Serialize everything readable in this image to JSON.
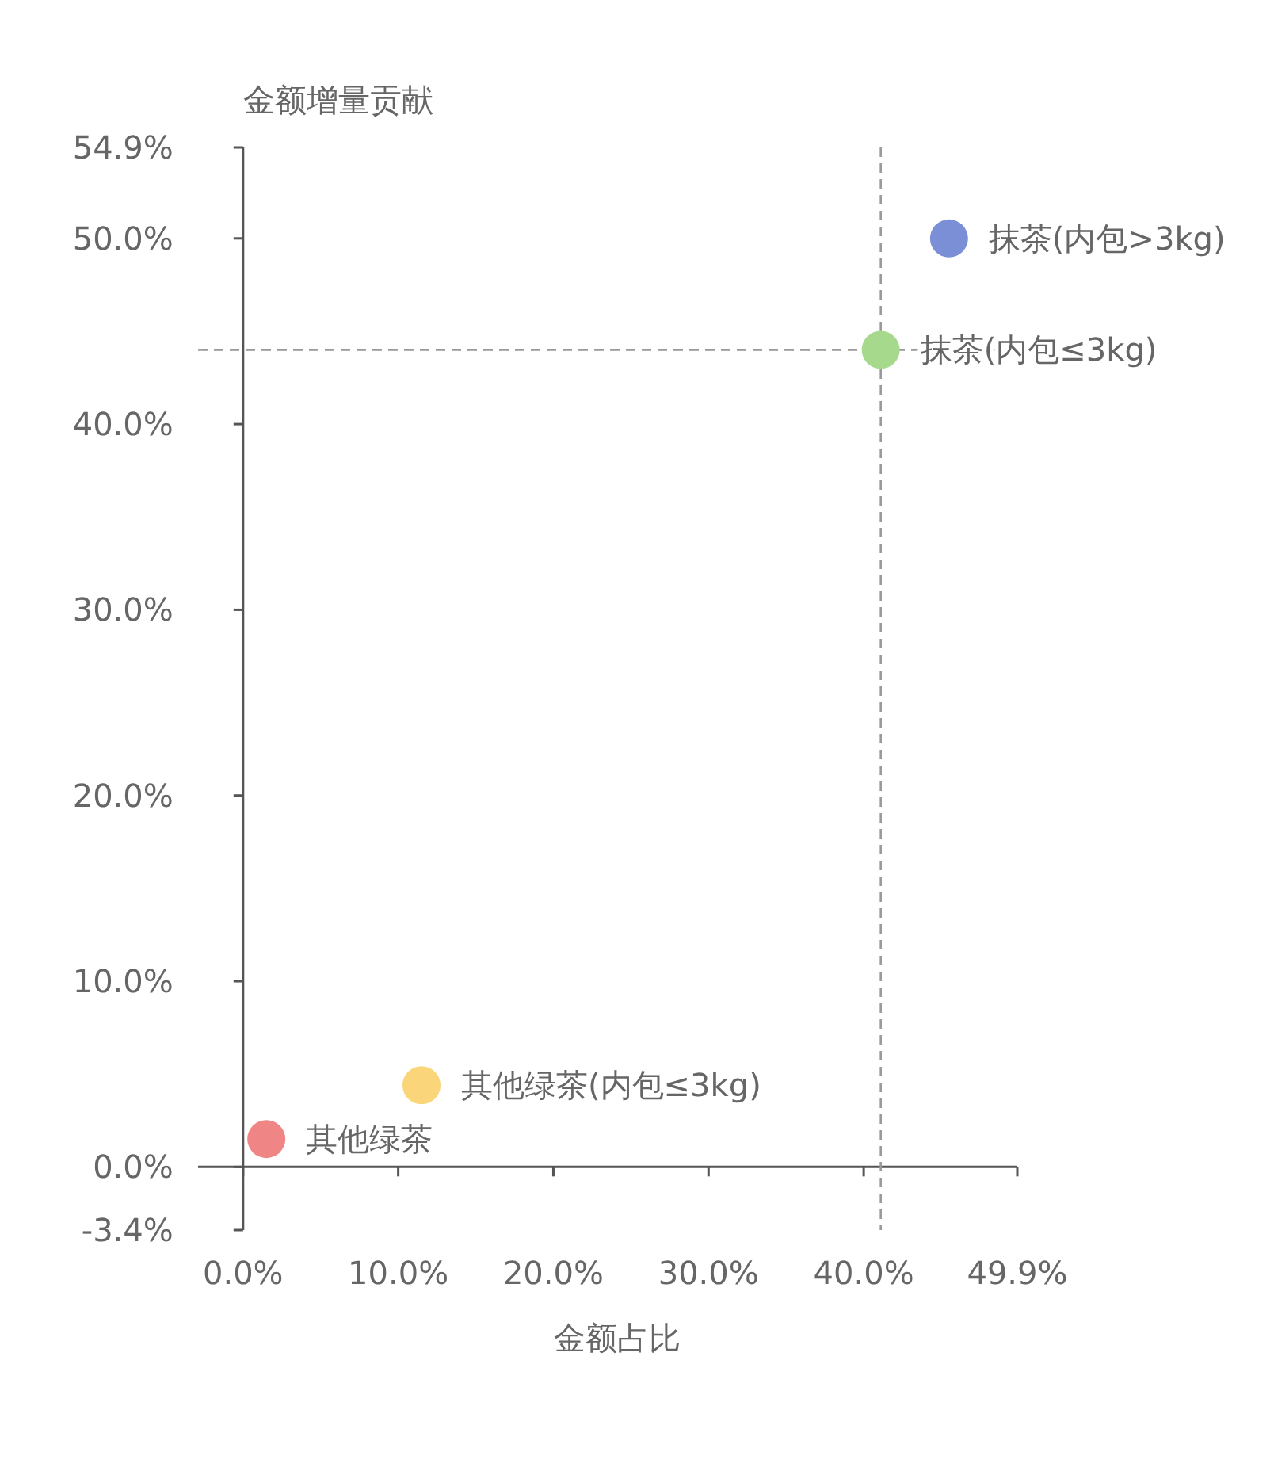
{
  "chart_data": {
    "type": "scatter",
    "xlabel": "金额占比",
    "ylabel": "金额增量贡献",
    "series": [
      {
        "name": "其他绿茶",
        "color": "#f08585",
        "x": [
          1.5
        ],
        "values": [
          1.5
        ]
      },
      {
        "name": "其他绿茶(内包≤3kg)",
        "color": "#fad57a",
        "x": [
          11.5
        ],
        "values": [
          4.4
        ]
      },
      {
        "name": "抹茶(内包≤3kg)",
        "color": "#a6d98c",
        "x": [
          41.1
        ],
        "values": [
          44.0
        ]
      },
      {
        "name": "抹茶(内包>3kg)",
        "color": "#7a8fd6",
        "x": [
          45.5
        ],
        "values": [
          50.0
        ]
      }
    ],
    "xlim": [
      -2.9,
      49.9
    ],
    "ylim": [
      -3.4,
      54.9
    ],
    "xticks": [
      {
        "value": 0,
        "label": "0.0%"
      },
      {
        "value": 10,
        "label": "10.0%"
      },
      {
        "value": 20,
        "label": "20.0%"
      },
      {
        "value": 30,
        "label": "30.0%"
      },
      {
        "value": 40,
        "label": "40.0%"
      },
      {
        "value": 49.9,
        "label": "49.9%"
      }
    ],
    "yticks": [
      {
        "value": -3.4,
        "label": "-3.4%"
      },
      {
        "value": 0,
        "label": "0.0%"
      },
      {
        "value": 10,
        "label": "10.0%"
      },
      {
        "value": 20,
        "label": "20.0%"
      },
      {
        "value": 30,
        "label": "30.0%"
      },
      {
        "value": 40,
        "label": "40.0%"
      },
      {
        "value": 50,
        "label": "50.0%"
      },
      {
        "value": 54.9,
        "label": "54.9%"
      }
    ],
    "ref_lines": [
      {
        "axis": "x",
        "value": 41.1,
        "color": "#999999",
        "line_style": "dashed"
      },
      {
        "axis": "y",
        "value": 44.0,
        "color": "#999999",
        "line_style": "dashed"
      }
    ],
    "marker": "circle"
  }
}
